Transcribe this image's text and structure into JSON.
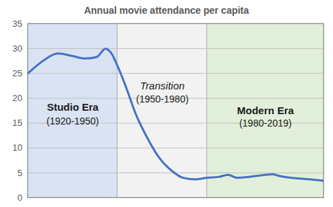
{
  "chart_data": {
    "type": "line",
    "title": "Annual movie attendance per capita",
    "x": [
      1920,
      1925,
      1930,
      1935,
      1939,
      1943,
      1946,
      1948,
      1950,
      1953,
      1956,
      1960,
      1964,
      1968,
      1972,
      1976,
      1980,
      1984,
      1987,
      1990,
      1994,
      1998,
      2002,
      2004,
      2008,
      2012,
      2016,
      2019
    ],
    "values": [
      25,
      27.5,
      29,
      28.5,
      28,
      28.3,
      30,
      29,
      26.5,
      22,
      17,
      12,
      8,
      5.5,
      4,
      3.7,
      4,
      4.2,
      4.6,
      4,
      4.2,
      4.5,
      4.7,
      4.4,
      4,
      3.8,
      3.6,
      3.4
    ],
    "color": "#4472c4",
    "xlim": [
      1920,
      2019
    ],
    "ylim": [
      0,
      35
    ],
    "yticks": [
      0,
      5,
      10,
      15,
      20,
      25,
      30,
      35
    ],
    "grid": true,
    "tick_labels": "y",
    "eras": [
      {
        "name": "Studio Era",
        "label": "(1920-1950)",
        "start": 1920,
        "end": 1950,
        "color": "#dae3f3"
      },
      {
        "name": "Transition",
        "label": "(1950-1980)",
        "start": 1950,
        "end": 1980,
        "color": "#f2f2f2"
      },
      {
        "name": "Modern Era",
        "label": "(1980-2019)",
        "start": 1980,
        "end": 2019,
        "color": "#e2efda"
      }
    ]
  }
}
